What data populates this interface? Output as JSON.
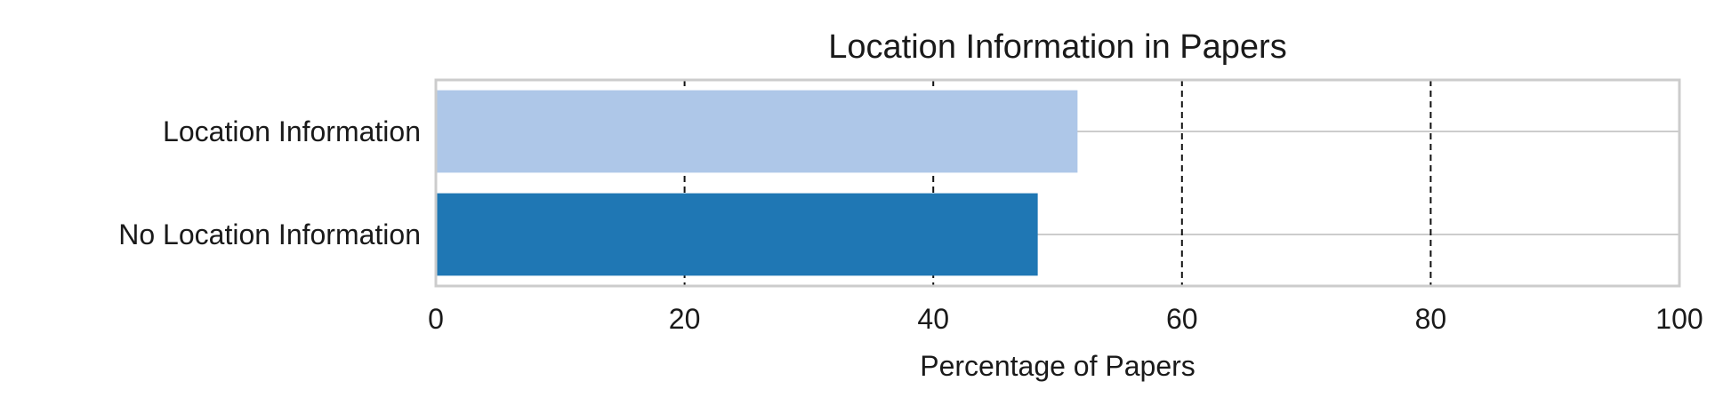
{
  "chart_data": {
    "type": "bar",
    "orientation": "horizontal",
    "title": "Location Information in Papers",
    "xlabel": "Percentage of Papers",
    "ylabel": "",
    "categories": [
      "Location Information",
      "No Location Information"
    ],
    "values": [
      51.6,
      48.4
    ],
    "bar_colors": [
      "#aec7e8",
      "#1f77b4"
    ],
    "xlim": [
      0,
      100
    ],
    "x_ticks": [
      0,
      20,
      40,
      60,
      80,
      100
    ],
    "x_tick_labels": [
      "0",
      "20",
      "40",
      "60",
      "80",
      "100"
    ],
    "grid": {
      "x": "dashed black at 20, 40, 60, 80",
      "y": "solid light gray at bar centers"
    },
    "legend": "none",
    "frame_color": "#cccccc"
  }
}
